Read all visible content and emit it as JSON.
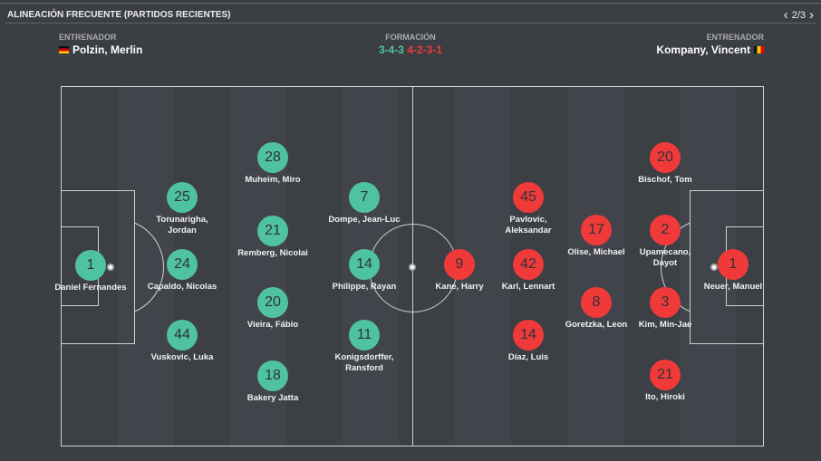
{
  "header": {
    "title": "ALINEACIÓN FRECUENTE (PARTIDOS RECIENTES)",
    "page": "2/3"
  },
  "home_coach": {
    "label": "ENTRENADOR",
    "name": "Polzin, Merlin"
  },
  "away_coach": {
    "label": "ENTRENADOR",
    "name": "Kompany, Vincent"
  },
  "formation": {
    "label": "FORMACIÓN",
    "home": "3-4-3",
    "away": "4-2-3-1"
  },
  "colors": {
    "home": "#4fc3a1",
    "away": "#f03a3a"
  },
  "home_players": [
    {
      "num": "1",
      "name": "Daniel Fernandes"
    },
    {
      "num": "25",
      "name": "Torunarigha, Jordan"
    },
    {
      "num": "24",
      "name": "Capaldo, Nicolas"
    },
    {
      "num": "44",
      "name": "Vuskovic, Luka"
    },
    {
      "num": "28",
      "name": "Muheim, Miro"
    },
    {
      "num": "21",
      "name": "Remberg, Nicolai"
    },
    {
      "num": "20",
      "name": "Vieira, Fábio"
    },
    {
      "num": "18",
      "name": "Bakery Jatta"
    },
    {
      "num": "7",
      "name": "Dompe, Jean-Luc"
    },
    {
      "num": "14",
      "name": "Philippe, Rayan"
    },
    {
      "num": "11",
      "name": "Konigsdorffer, Ransford"
    }
  ],
  "away_players": [
    {
      "num": "9",
      "name": "Kane, Harry"
    },
    {
      "num": "45",
      "name": "Pavlovic, Aleksandar"
    },
    {
      "num": "42",
      "name": "Karl, Lennart"
    },
    {
      "num": "14",
      "name": "Díaz, Luis"
    },
    {
      "num": "17",
      "name": "Olise, Michael"
    },
    {
      "num": "8",
      "name": "Goretzka, Leon"
    },
    {
      "num": "20",
      "name": "Bischof, Tom"
    },
    {
      "num": "2",
      "name": "Upamecano, Dayot"
    },
    {
      "num": "3",
      "name": "Kim, Min-Jae"
    },
    {
      "num": "21",
      "name": "Ito, Hiroki"
    },
    {
      "num": "1",
      "name": "Neuer, Manuel"
    }
  ]
}
